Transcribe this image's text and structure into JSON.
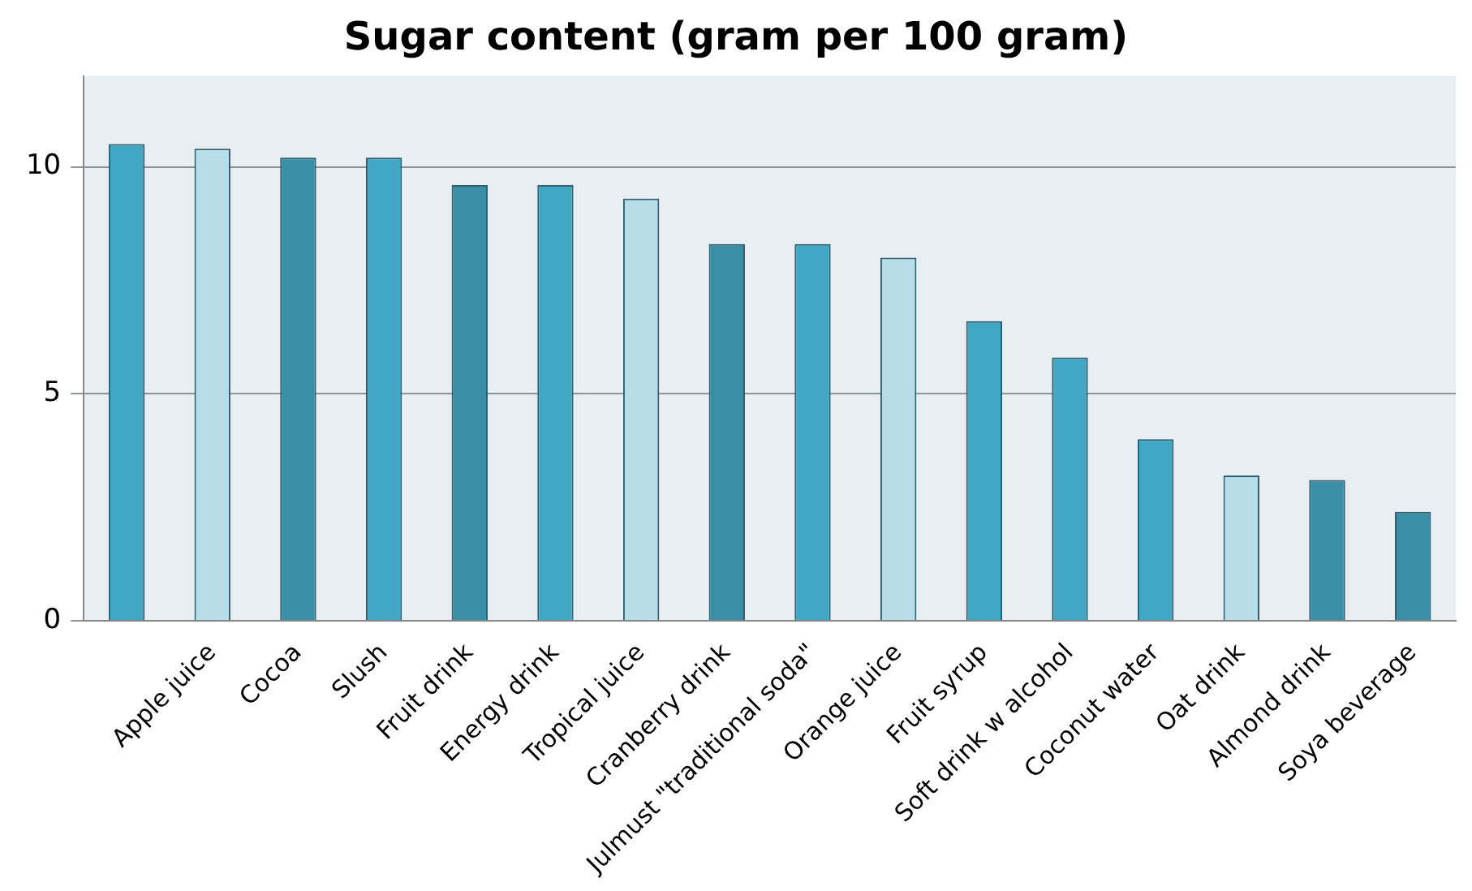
{
  "chart_data": {
    "type": "bar",
    "title": "Sugar content (gram per 100 gram)",
    "categories": [
      null,
      "Apple juice",
      "Cocoa",
      "Slush",
      "Fruit drink",
      "Energy drink",
      "Tropical juice",
      "Cranberry drink",
      "Julmust \"traditional soda\"",
      "Orange juice",
      "Fruit syrup",
      "Soft drink w alcohol",
      "Coconut water",
      "Oat drink",
      "Almond drink",
      "Soya beverage"
    ],
    "values": [
      10.5,
      10.4,
      10.2,
      10.2,
      9.6,
      9.6,
      9.3,
      8.3,
      8.3,
      8.0,
      6.6,
      5.8,
      4.0,
      3.2,
      3.1,
      2.4
    ],
    "colors": [
      "#41a7c4",
      "#b6dde8",
      "#3a8ea6",
      "#41a7c4",
      "#3a8ea6",
      "#41a7c4",
      "#b6dde8",
      "#3a8ea6",
      "#41a7c4",
      "#b6dde8",
      "#41a7c4",
      "#41a7c4",
      "#41a7c4",
      "#b6dde8",
      "#3a8ea6",
      "#3a8ea6"
    ],
    "ylim": [
      0,
      12
    ],
    "yticks": [
      0,
      5,
      10
    ],
    "grid": "y",
    "legend": false
  }
}
